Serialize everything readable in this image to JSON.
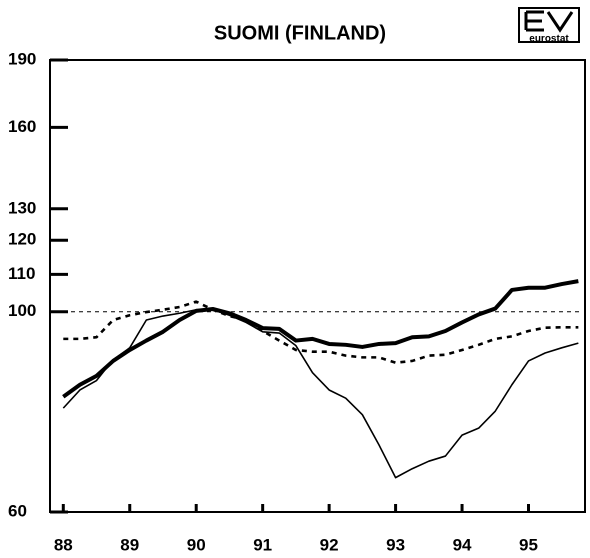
{
  "chart_data": {
    "type": "line",
    "title": "SUOMI (FINLAND)",
    "logo_text": "eurostat",
    "log_y": true,
    "grid": false,
    "x": [
      1988,
      1988.25,
      1988.5,
      1988.75,
      1989,
      1989.25,
      1989.5,
      1989.75,
      1990,
      1990.25,
      1990.5,
      1990.75,
      1991,
      1991.25,
      1991.5,
      1991.75,
      1992,
      1992.25,
      1992.5,
      1992.75,
      1993,
      1993.25,
      1993.5,
      1993.75,
      1994,
      1994.25,
      1994.5,
      1994.75,
      1995,
      1995.25,
      1995.5,
      1995.75
    ],
    "xlim": [
      1987.8,
      1995.85
    ],
    "xticks": [
      {
        "value": 1988,
        "label": "88"
      },
      {
        "value": 1989,
        "label": "89"
      },
      {
        "value": 1990,
        "label": "90"
      },
      {
        "value": 1991,
        "label": "91"
      },
      {
        "value": 1992,
        "label": "92"
      },
      {
        "value": 1993,
        "label": "93"
      },
      {
        "value": 1994,
        "label": "94"
      },
      {
        "value": 1995,
        "label": "95"
      }
    ],
    "ylim": [
      60,
      190
    ],
    "yticks": [
      60,
      100,
      110,
      120,
      130,
      160,
      190
    ],
    "reference_line": 100,
    "series": [
      {
        "color": "#000",
        "width": 4,
        "dash": "none",
        "values": [
          80.5,
          83.0,
          84.9,
          88.2,
          90.7,
          92.9,
          95.0,
          97.9,
          100.2,
          100.7,
          99.6,
          97.9,
          95.9,
          95.7,
          92.9,
          93.3,
          92.1,
          91.9,
          91.4,
          92.1,
          92.3,
          93.7,
          93.9,
          95.2,
          97.3,
          99.3,
          100.8,
          105.7,
          106.3,
          106.3,
          107.3,
          108.1
        ]
      },
      {
        "color": "#000",
        "width": 1.6,
        "dash": "none",
        "values": [
          78.2,
          81.9,
          83.9,
          88.5,
          91.2,
          97.9,
          98.9,
          99.6,
          100.5,
          100.5,
          99.1,
          97.3,
          95.0,
          94.7,
          91.7,
          85.6,
          81.9,
          80.2,
          76.9,
          71.2,
          65.5,
          67.0,
          68.3,
          69.2,
          73.0,
          74.3,
          77.6,
          83.0,
          88.2,
          90.0,
          91.2,
          92.3
        ]
      },
      {
        "color": "#000",
        "width": 2.6,
        "dash": "5 5",
        "values": [
          93.3,
          93.3,
          93.7,
          97.9,
          99.1,
          99.9,
          100.5,
          101.2,
          102.6,
          100.5,
          98.9,
          97.9,
          95.2,
          92.9,
          90.7,
          90.3,
          90.3,
          89.4,
          89.0,
          89.0,
          87.8,
          88.2,
          89.4,
          89.6,
          90.7,
          91.9,
          93.3,
          93.9,
          95.2,
          96.0,
          96.1,
          96.1
        ]
      }
    ]
  }
}
